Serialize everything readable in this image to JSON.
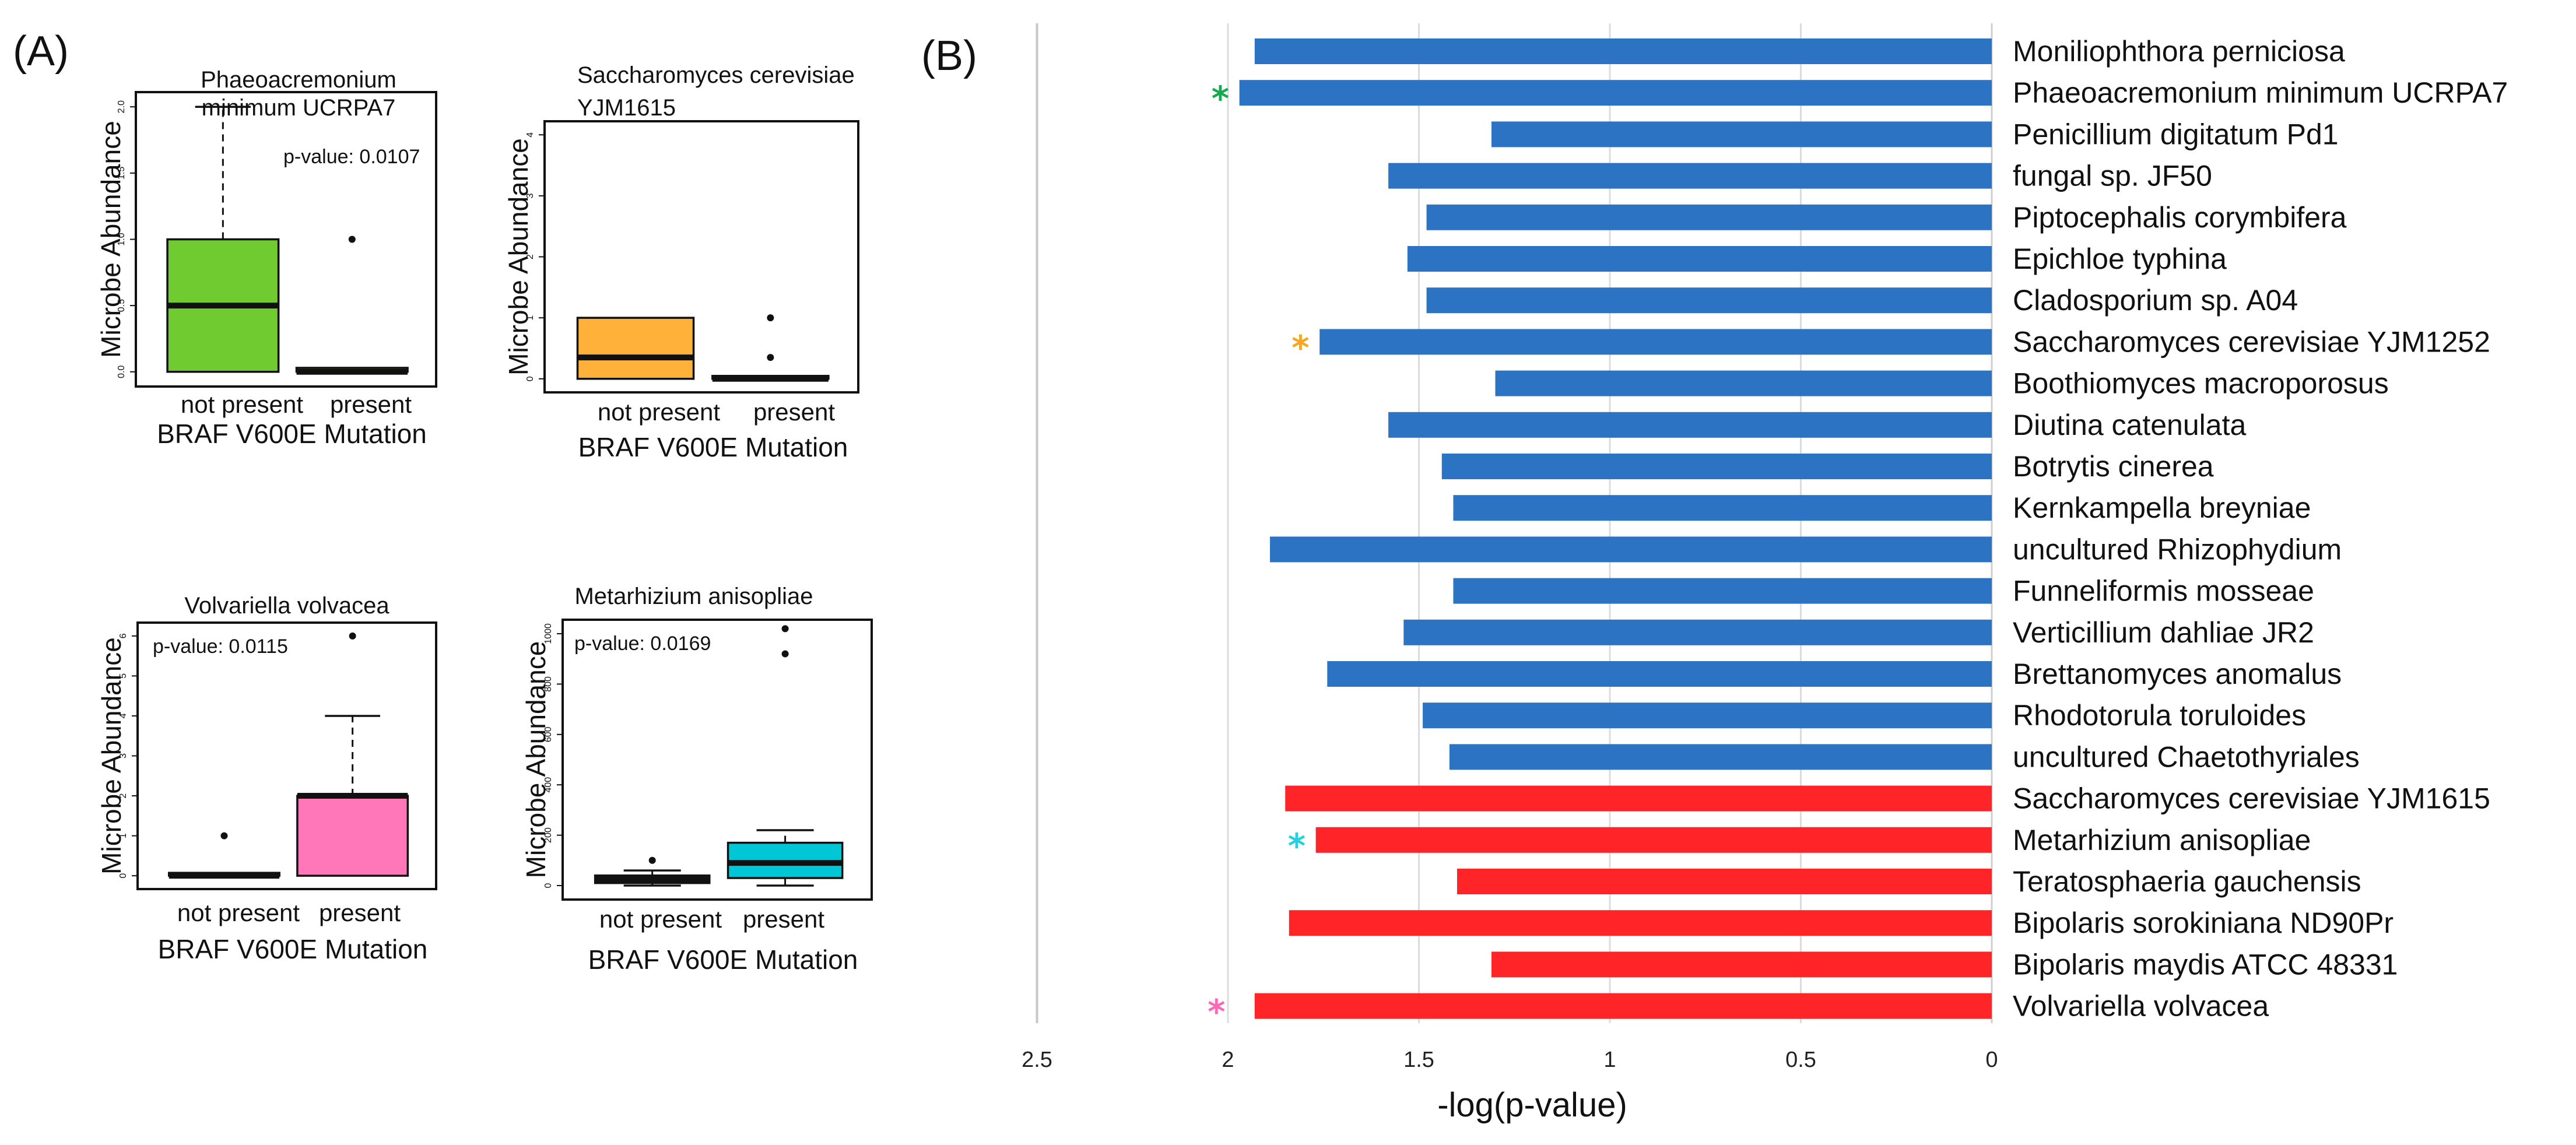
{
  "figure_labels": {
    "panel_a": "(A)",
    "panel_b": "(B)"
  },
  "colors": {
    "green_box": "#6fcb2f",
    "orange_box": "#ffb13a",
    "pink_box": "#ff77b8",
    "cyan_box": "#00c6d6",
    "blue_bar": "#2d73c4",
    "red_bar": "#ff2428",
    "green_star": "#18a84f",
    "orange_star": "#f5a623",
    "cyan_star": "#25d0e0",
    "pink_star": "#ff69b4"
  },
  "chart_data": [
    {
      "type": "box",
      "title": "Phaeoacremonium minimum UCRPA7",
      "title_lines": [
        "Phaeoacremonium",
        "minimum UCRPA7"
      ],
      "pvalue_text": "p-value: 0.0107",
      "xlabel": "BRAF V600E Mutation",
      "ylabel": "Microbe Abundance",
      "categories": [
        "not present",
        "present"
      ],
      "ylim": [
        0,
        2
      ],
      "yticks": [
        "0.0",
        "0.5",
        "1.0",
        "1.5",
        "2.0"
      ],
      "color_key": "green_box",
      "boxes": [
        {
          "min": 0,
          "q1": 0,
          "median": 0.5,
          "q3": 1.0,
          "max": 2.0,
          "outliers": []
        },
        {
          "min": 0,
          "q1": 0,
          "median": 0,
          "q3": 0.03,
          "max": 0.03,
          "outliers": [
            1.0
          ]
        }
      ]
    },
    {
      "type": "box",
      "title": "Saccharomyces cerevisiae YJM1615",
      "title_lines": [
        "Saccharomyces cerevisiae",
        "YJM1615"
      ],
      "pvalue_text": "",
      "xlabel": "BRAF V600E Mutation",
      "ylabel": "Microbe Abundance",
      "categories": [
        "not present",
        "present"
      ],
      "ylim": [
        0,
        4
      ],
      "yticks": [
        "0",
        "1",
        "2",
        "3",
        "4"
      ],
      "color_key": "orange_box",
      "boxes": [
        {
          "min": 0,
          "q1": 0,
          "median": 0.35,
          "q3": 1.0,
          "max": 1.0,
          "outliers": []
        },
        {
          "min": 0,
          "q1": 0,
          "median": 0,
          "q3": 0.04,
          "max": 0.04,
          "outliers": [
            0.35,
            1.0
          ]
        }
      ]
    },
    {
      "type": "box",
      "title": "Volvariella volvacea",
      "title_lines": [
        "Volvariella volvacea"
      ],
      "pvalue_text": "p-value: 0.0115",
      "xlabel": "BRAF V600E Mutation",
      "ylabel": "Microbe Abundance",
      "categories": [
        "not present",
        "present"
      ],
      "ylim": [
        0,
        6
      ],
      "yticks": [
        "0",
        "1",
        "2",
        "3",
        "4",
        "5",
        "6"
      ],
      "color_key": "pink_box",
      "boxes": [
        {
          "min": 0,
          "q1": 0,
          "median": 0,
          "q3": 0.05,
          "max": 0.05,
          "outliers": [
            1.0
          ]
        },
        {
          "min": 0,
          "q1": 0,
          "median": 2.0,
          "q3": 2.0,
          "max": 4.0,
          "outliers": [
            6.0
          ]
        }
      ]
    },
    {
      "type": "box",
      "title": "Metarhizium anisopliae",
      "title_lines": [
        "Metarhizium anisopliae"
      ],
      "pvalue_text": "p-value: 0.0169",
      "xlabel": "BRAF V600E Mutation",
      "ylabel": "Microbe Abundance",
      "categories": [
        "not present",
        "present"
      ],
      "ylim": [
        0,
        1000
      ],
      "yticks": [
        "0",
        "200",
        "400",
        "600",
        "800",
        "1000"
      ],
      "color_key": "cyan_box",
      "boxes": [
        {
          "min": 0,
          "q1": 10,
          "median": 25,
          "q3": 40,
          "max": 60,
          "outliers": [
            100
          ]
        },
        {
          "min": 0,
          "q1": 30,
          "median": 90,
          "q3": 170,
          "max": 220,
          "outliers": [
            920,
            1020
          ]
        }
      ]
    },
    {
      "type": "bar",
      "orientation": "horizontal",
      "xlabel": "-log(p-value)",
      "x_reversed": true,
      "xlim": [
        0,
        2.5
      ],
      "xticks": [
        "2.5",
        "2",
        "1.5",
        "1",
        "0.5",
        "0"
      ],
      "xtick_values": [
        2.5,
        2,
        1.5,
        1,
        0.5,
        0
      ],
      "categories": [
        "Moniliophthora perniciosa",
        "Phaeoacremonium minimum UCRPA7",
        "Penicillium digitatum Pd1",
        "fungal sp. JF50",
        "Piptocephalis corymbifera",
        "Epichloe typhina",
        "Cladosporium sp. A04",
        "Saccharomyces cerevisiae YJM1252",
        "Boothiomyces macroporosus",
        "Diutina catenulata",
        "Botrytis cinerea",
        "Kernkampella breyniae",
        "uncultured Rhizophydium",
        "Funneliformis mosseae",
        "Verticillium dahliae JR2",
        "Brettanomyces anomalus",
        "Rhodotorula toruloides",
        "uncultured Chaetothyriales",
        "Saccharomyces cerevisiae YJM1615",
        "Metarhizium anisopliae",
        "Teratosphaeria gauchensis",
        "Bipolaris sorokiniana ND90Pr",
        "Bipolaris maydis ATCC 48331",
        "Volvariella volvacea"
      ],
      "values": [
        1.93,
        1.97,
        1.31,
        1.58,
        1.48,
        1.53,
        1.48,
        1.76,
        1.3,
        1.58,
        1.44,
        1.41,
        1.89,
        1.41,
        1.54,
        1.74,
        1.49,
        1.42,
        1.85,
        1.77,
        1.4,
        1.84,
        1.31,
        1.93
      ],
      "bar_colors": [
        "blue_bar",
        "blue_bar",
        "blue_bar",
        "blue_bar",
        "blue_bar",
        "blue_bar",
        "blue_bar",
        "blue_bar",
        "blue_bar",
        "blue_bar",
        "blue_bar",
        "blue_bar",
        "blue_bar",
        "blue_bar",
        "blue_bar",
        "blue_bar",
        "blue_bar",
        "blue_bar",
        "red_bar",
        "red_bar",
        "red_bar",
        "red_bar",
        "red_bar",
        "red_bar"
      ],
      "stars": [
        {
          "index": 1,
          "color_key": "green_star",
          "value": 2.02
        },
        {
          "index": 7,
          "color_key": "orange_star",
          "value": 1.81
        },
        {
          "index": 19,
          "color_key": "cyan_star",
          "value": 1.82
        },
        {
          "index": 23,
          "color_key": "pink_star",
          "value": 2.03
        }
      ]
    }
  ]
}
